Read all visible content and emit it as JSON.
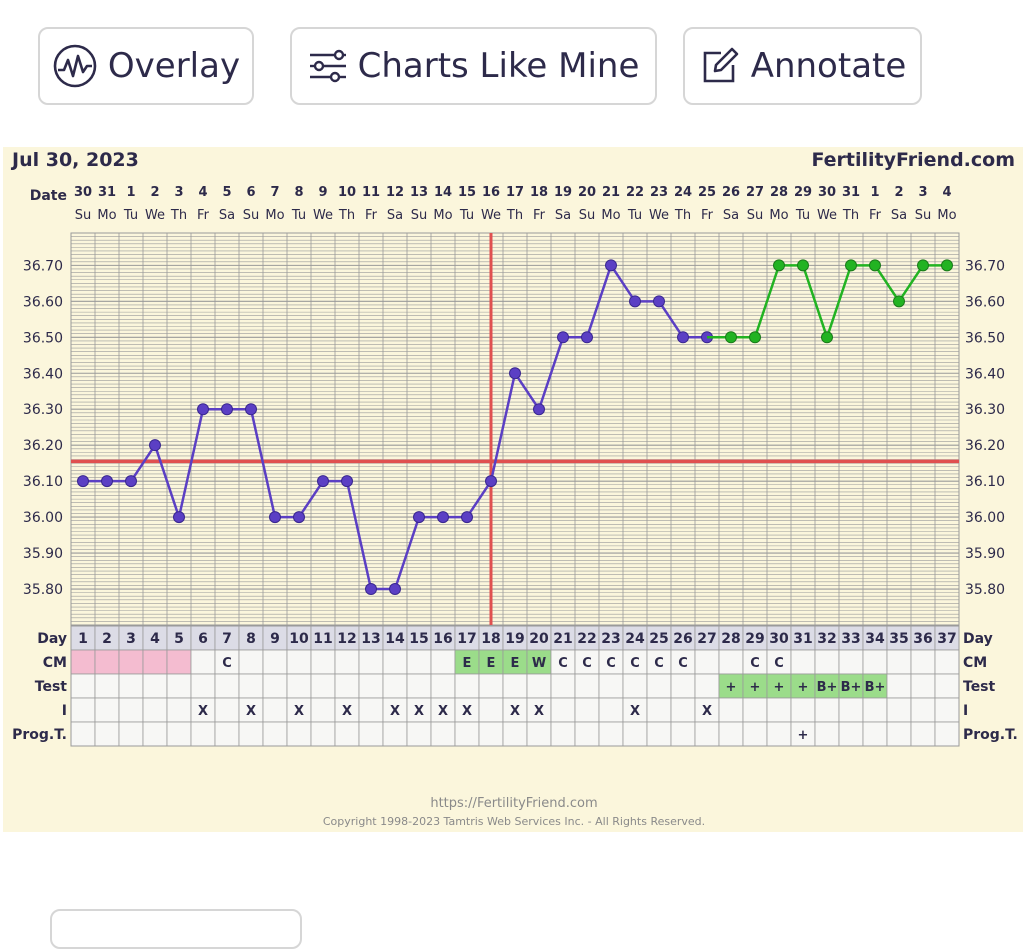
{
  "toolbar": {
    "overlay_label": "Overlay",
    "charts_like_mine_label": "Charts Like Mine",
    "annotate_label": "Annotate"
  },
  "chart_data": {
    "type": "line",
    "date_title": "Jul 30, 2023",
    "site": "FertilityFriend.com",
    "footer_url": "https://FertilityFriend.com",
    "footer_copyright": "Copyright 1998-2023 Tamtris Web Services Inc. - All Rights Reserved.",
    "dates": [
      "30",
      "31",
      "1",
      "2",
      "3",
      "4",
      "5",
      "6",
      "7",
      "8",
      "9",
      "10",
      "11",
      "12",
      "13",
      "14",
      "15",
      "16",
      "17",
      "18",
      "19",
      "20",
      "21",
      "22",
      "23",
      "24",
      "25",
      "26",
      "27",
      "28",
      "29",
      "30",
      "31",
      "1",
      "2",
      "3",
      "4"
    ],
    "weekdays": [
      "Su",
      "Mo",
      "Tu",
      "We",
      "Th",
      "Fr",
      "Sa",
      "Su",
      "Mo",
      "Tu",
      "We",
      "Th",
      "Fr",
      "Sa",
      "Su",
      "Mo",
      "Tu",
      "We",
      "Th",
      "Fr",
      "Sa",
      "Su",
      "Mo",
      "Tu",
      "We",
      "Th",
      "Fr",
      "Sa",
      "Su",
      "Mo",
      "Tu",
      "We",
      "Th",
      "Fr",
      "Sa",
      "Su",
      "Mo"
    ],
    "days": [
      1,
      2,
      3,
      4,
      5,
      6,
      7,
      8,
      9,
      10,
      11,
      12,
      13,
      14,
      15,
      16,
      17,
      18,
      19,
      20,
      21,
      22,
      23,
      24,
      25,
      26,
      27,
      28,
      29,
      30,
      31,
      32,
      33,
      34,
      35,
      36,
      37
    ],
    "ylim": [
      35.7,
      36.79
    ],
    "yticks": [
      "36.70",
      "36.60",
      "36.50",
      "36.40",
      "36.30",
      "36.20",
      "36.10",
      "36.00",
      "35.90",
      "35.80"
    ],
    "series": [
      {
        "color": "#5b3fc4",
        "x": [
          1,
          2,
          3,
          4,
          5,
          6,
          7,
          8,
          9,
          10,
          11,
          12,
          13,
          14,
          15,
          16,
          17,
          18,
          19,
          20,
          21,
          22,
          23,
          24,
          25,
          26,
          27
        ],
        "values": [
          36.1,
          36.1,
          36.1,
          36.2,
          36.0,
          36.3,
          36.3,
          36.3,
          36.0,
          36.0,
          36.1,
          36.1,
          35.8,
          35.8,
          36.0,
          36.0,
          36.0,
          36.1,
          36.4,
          36.3,
          36.5,
          36.5,
          36.7,
          36.6,
          36.6,
          36.5,
          36.5
        ]
      },
      {
        "color": "#22b322",
        "x": [
          27,
          28,
          29,
          30,
          31,
          32,
          33,
          34,
          35,
          36,
          37
        ],
        "values": [
          36.5,
          36.5,
          36.5,
          36.7,
          36.7,
          36.5,
          36.7,
          36.7,
          36.6,
          36.7,
          36.7
        ],
        "points_x": [
          28,
          29,
          30,
          31,
          32,
          33,
          34,
          35,
          36,
          37
        ]
      }
    ],
    "coverline": {
      "value": 36.155,
      "color": "#e05050"
    },
    "ovulation_day": 18,
    "rows": [
      {
        "label": "Day"
      },
      {
        "label": "CM",
        "cells": {
          "7": "C",
          "17": "E",
          "18": "E",
          "19": "E",
          "20": "W",
          "21": "C",
          "22": "C",
          "23": "C",
          "24": "C",
          "25": "C",
          "26": "C",
          "29": "C",
          "30": "C"
        },
        "fills": {
          "1": "#f4bcd0",
          "2": "#f4bcd0",
          "3": "#f4bcd0",
          "4": "#f4bcd0",
          "5": "#f4bcd0",
          "17": "#9bdc8a",
          "18": "#9bdc8a",
          "19": "#9bdc8a",
          "20": "#9bdc8a"
        }
      },
      {
        "label": "Test",
        "cells": {
          "28": "+",
          "29": "+",
          "30": "+",
          "31": "+",
          "32": "B+",
          "33": "B+",
          "34": "B+"
        },
        "fills": {
          "28": "#9bdc8a",
          "29": "#9bdc8a",
          "30": "#9bdc8a",
          "31": "#9bdc8a",
          "32": "#9bdc8a",
          "33": "#9bdc8a",
          "34": "#9bdc8a"
        }
      },
      {
        "label": "I",
        "cells": {
          "6": "X",
          "8": "X",
          "10": "X",
          "12": "X",
          "14": "X",
          "15": "X",
          "16": "X",
          "17": "X",
          "19": "X",
          "20": "X",
          "24": "X",
          "27": "X"
        }
      },
      {
        "label": "Prog.T.",
        "cells": {
          "31": "+"
        }
      }
    ]
  }
}
